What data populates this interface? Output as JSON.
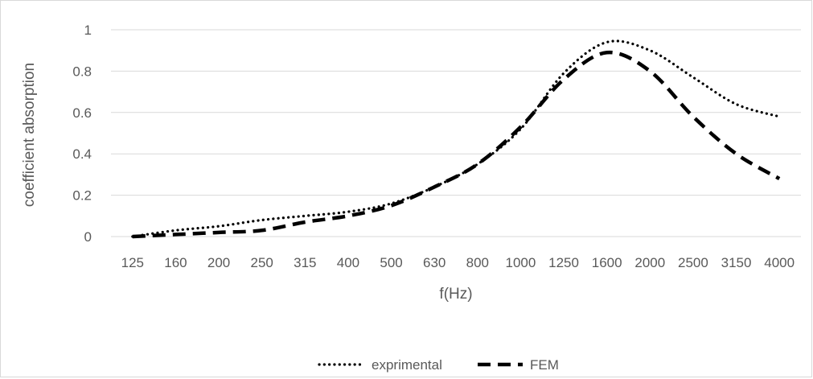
{
  "chart_data": {
    "type": "line",
    "title": "",
    "xlabel": "f(Hz)",
    "ylabel": "coefficient absorption",
    "categories": [
      "125",
      "160",
      "200",
      "250",
      "315",
      "400",
      "500",
      "630",
      "800",
      "1000",
      "1250",
      "1600",
      "2000",
      "2500",
      "3150",
      "4000"
    ],
    "yticks": [
      "0",
      "0.2",
      "0.4",
      "0.6",
      "0.8",
      "1"
    ],
    "ylim": [
      0,
      1
    ],
    "grid": "horizontal",
    "legend_position": "bottom",
    "series": [
      {
        "name": "exprimental",
        "style": "dotted",
        "color": "#000000",
        "values": [
          0.0,
          0.03,
          0.05,
          0.08,
          0.1,
          0.12,
          0.16,
          0.24,
          0.35,
          0.52,
          0.79,
          0.94,
          0.9,
          0.77,
          0.64,
          0.58
        ]
      },
      {
        "name": "FEM",
        "style": "dashed",
        "color": "#000000",
        "values": [
          0.0,
          0.01,
          0.02,
          0.03,
          0.07,
          0.1,
          0.15,
          0.24,
          0.35,
          0.53,
          0.76,
          0.89,
          0.8,
          0.58,
          0.4,
          0.28
        ]
      }
    ]
  }
}
